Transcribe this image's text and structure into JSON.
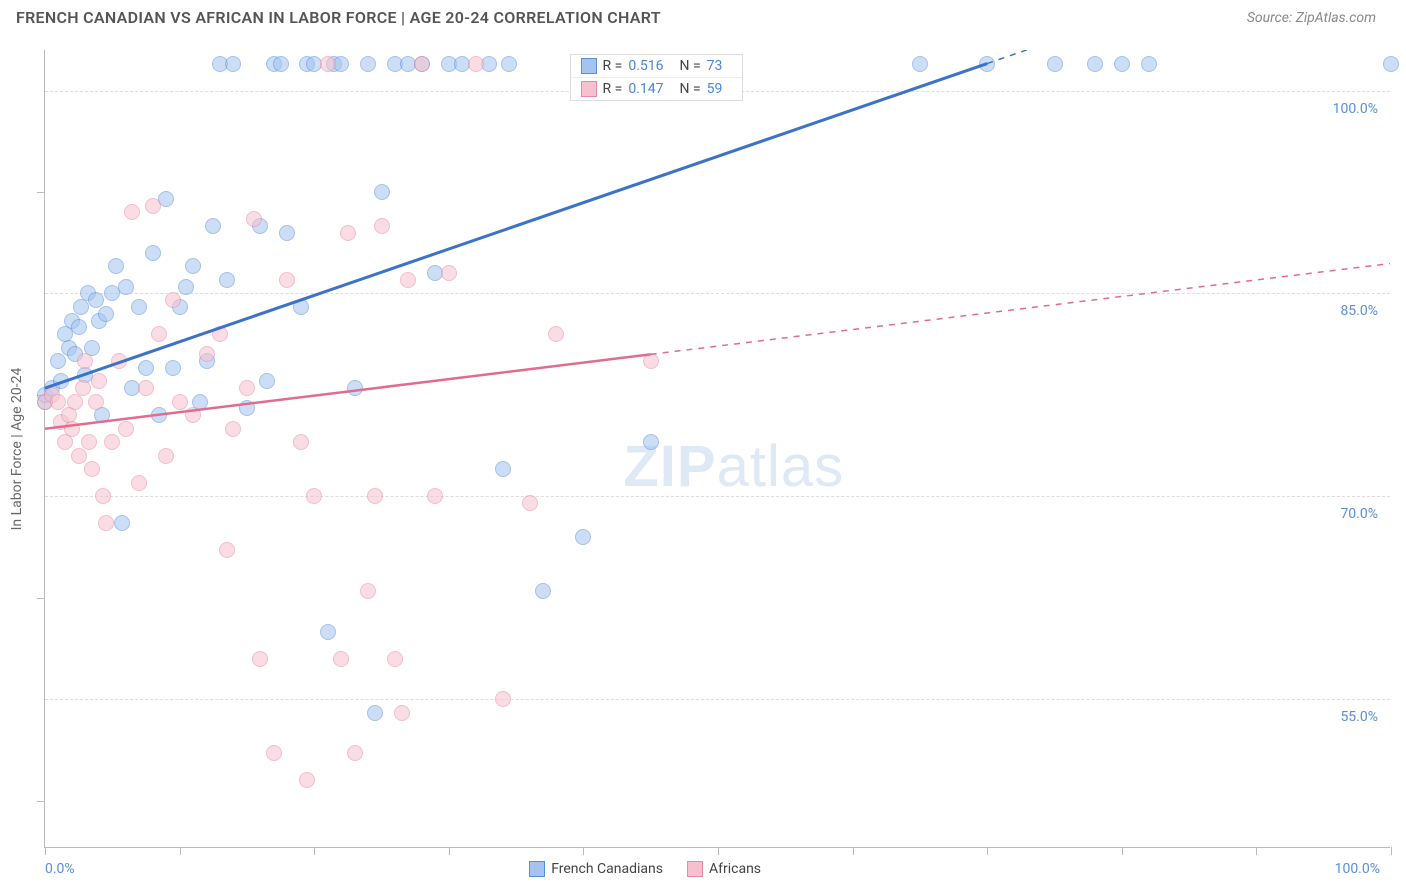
{
  "header": {
    "title": "FRENCH CANADIAN VS AFRICAN IN LABOR FORCE | AGE 20-24 CORRELATION CHART",
    "source": "Source: ZipAtlas.com"
  },
  "chart": {
    "type": "scatter",
    "ylabel": "In Labor Force | Age 20-24",
    "watermark_zip": "ZIP",
    "watermark_atlas": "atlas",
    "xlim": [
      0,
      100
    ],
    "ylim": [
      44,
      103
    ],
    "xtick_positions": [
      0,
      10,
      20,
      30,
      40,
      50,
      60,
      70,
      80,
      90,
      100
    ],
    "ytick_gridlines": [
      55,
      70,
      85,
      100
    ],
    "ytick_minor": [
      47.5,
      62.5,
      77.5,
      92.5
    ],
    "ytick_labels": [
      {
        "y": 55,
        "text": "55.0%"
      },
      {
        "y": 70,
        "text": "70.0%"
      },
      {
        "y": 85,
        "text": "85.0%"
      },
      {
        "y": 100,
        "text": "100.0%"
      }
    ],
    "xmin_label": "0.0%",
    "xmax_label": "100.0%",
    "grid_color": "#dddddd",
    "axis_color": "#bbbbbb",
    "background_color": "#ffffff",
    "series": [
      {
        "name": "French Canadians",
        "color_fill": "#a3c4ef",
        "color_stroke": "#5b8fd9",
        "class": "blue",
        "R": "0.516",
        "N": "73",
        "trend": {
          "x1": 0,
          "y1": 78,
          "x2": 70,
          "y2": 102,
          "dashed_to_x": 100
        },
        "points": [
          [
            0,
            77
          ],
          [
            0,
            77.5
          ],
          [
            0.5,
            78
          ],
          [
            1,
            80
          ],
          [
            1.2,
            78.5
          ],
          [
            1.5,
            82
          ],
          [
            1.8,
            81
          ],
          [
            2,
            83
          ],
          [
            2.2,
            80.5
          ],
          [
            2.5,
            82.5
          ],
          [
            2.7,
            84
          ],
          [
            3,
            79
          ],
          [
            3.2,
            85
          ],
          [
            3.5,
            81
          ],
          [
            3.8,
            84.5
          ],
          [
            4,
            83
          ],
          [
            4.2,
            76
          ],
          [
            4.5,
            83.5
          ],
          [
            5,
            85
          ],
          [
            5.3,
            87
          ],
          [
            5.7,
            68
          ],
          [
            6,
            85.5
          ],
          [
            6.5,
            78
          ],
          [
            7,
            84
          ],
          [
            7.5,
            79.5
          ],
          [
            8,
            88
          ],
          [
            8.5,
            76
          ],
          [
            9,
            92
          ],
          [
            9.5,
            79.5
          ],
          [
            10,
            84
          ],
          [
            10.5,
            85.5
          ],
          [
            11,
            87
          ],
          [
            11.5,
            77
          ],
          [
            12,
            80
          ],
          [
            12.5,
            90
          ],
          [
            13,
            102
          ],
          [
            13.5,
            86
          ],
          [
            14,
            102
          ],
          [
            15,
            76.5
          ],
          [
            16,
            90
          ],
          [
            16.5,
            78.5
          ],
          [
            17,
            102
          ],
          [
            17.5,
            102
          ],
          [
            18,
            89.5
          ],
          [
            19,
            84
          ],
          [
            19.5,
            102
          ],
          [
            20,
            102
          ],
          [
            21,
            60
          ],
          [
            21.5,
            102
          ],
          [
            22,
            102
          ],
          [
            23,
            78
          ],
          [
            24,
            102
          ],
          [
            24.5,
            54
          ],
          [
            25,
            92.5
          ],
          [
            26,
            102
          ],
          [
            27,
            102
          ],
          [
            28,
            102
          ],
          [
            29,
            86.5
          ],
          [
            30,
            102
          ],
          [
            31,
            102
          ],
          [
            33,
            102
          ],
          [
            34,
            72
          ],
          [
            34.5,
            102
          ],
          [
            37,
            63
          ],
          [
            40,
            67
          ],
          [
            45,
            74
          ],
          [
            65,
            102
          ],
          [
            70,
            102
          ],
          [
            75,
            102
          ],
          [
            78,
            102
          ],
          [
            80,
            102
          ],
          [
            82,
            102
          ],
          [
            100,
            102
          ]
        ]
      },
      {
        "name": "Africans",
        "color_fill": "#f6c1cf",
        "color_stroke": "#e88aa3",
        "class": "pink",
        "R": "0.147",
        "N": "59",
        "trend": {
          "x1": 0,
          "y1": 75,
          "x2": 45,
          "y2": 80.5,
          "dashed_to_x": 100
        },
        "points": [
          [
            0,
            77
          ],
          [
            0.5,
            77.5
          ],
          [
            1,
            77
          ],
          [
            1.2,
            75.5
          ],
          [
            1.5,
            74
          ],
          [
            1.8,
            76
          ],
          [
            2,
            75
          ],
          [
            2.2,
            77
          ],
          [
            2.5,
            73
          ],
          [
            2.8,
            78
          ],
          [
            3,
            80
          ],
          [
            3.3,
            74
          ],
          [
            3.5,
            72
          ],
          [
            3.8,
            77
          ],
          [
            4,
            78.5
          ],
          [
            4.3,
            70
          ],
          [
            4.5,
            68
          ],
          [
            5,
            74
          ],
          [
            5.5,
            80
          ],
          [
            6,
            75
          ],
          [
            6.5,
            91
          ],
          [
            7,
            71
          ],
          [
            7.5,
            78
          ],
          [
            8,
            91.5
          ],
          [
            8.5,
            82
          ],
          [
            9,
            73
          ],
          [
            9.5,
            84.5
          ],
          [
            10,
            77
          ],
          [
            11,
            76
          ],
          [
            12,
            80.5
          ],
          [
            13,
            82
          ],
          [
            13.5,
            66
          ],
          [
            14,
            75
          ],
          [
            15,
            78
          ],
          [
            15.5,
            90.5
          ],
          [
            16,
            58
          ],
          [
            17,
            51
          ],
          [
            18,
            86
          ],
          [
            19,
            74
          ],
          [
            19.5,
            49
          ],
          [
            20,
            70
          ],
          [
            21,
            102
          ],
          [
            22,
            58
          ],
          [
            22.5,
            89.5
          ],
          [
            23,
            51
          ],
          [
            24,
            63
          ],
          [
            24.5,
            70
          ],
          [
            25,
            90
          ],
          [
            26,
            58
          ],
          [
            26.5,
            54
          ],
          [
            27,
            86
          ],
          [
            28,
            102
          ],
          [
            29,
            70
          ],
          [
            30,
            86.5
          ],
          [
            32,
            102
          ],
          [
            34,
            55
          ],
          [
            36,
            69.5
          ],
          [
            38,
            82
          ],
          [
            45,
            80
          ]
        ]
      }
    ],
    "legend_bottom": [
      {
        "label": "French Canadians",
        "class": "blue"
      },
      {
        "label": "Africans",
        "class": "pink"
      }
    ]
  }
}
